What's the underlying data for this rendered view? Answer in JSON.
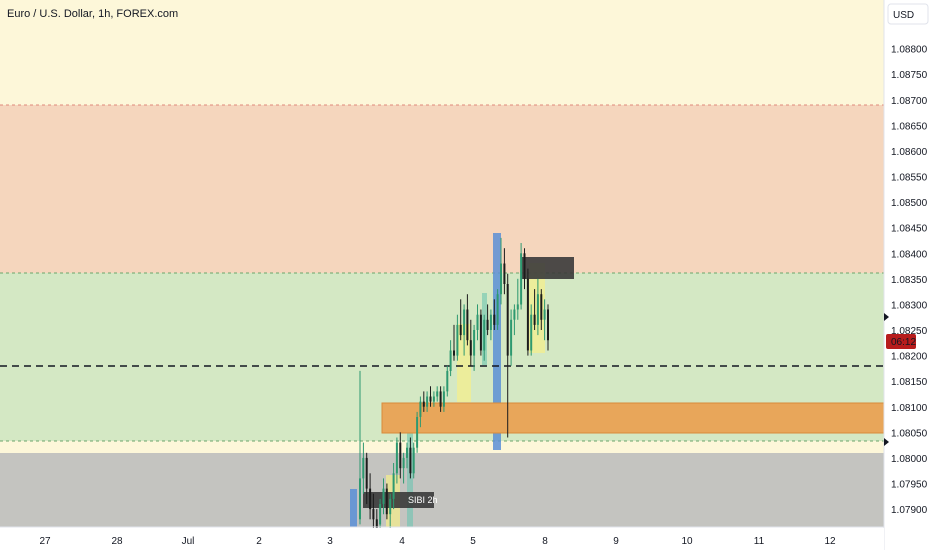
{
  "header": {
    "title": "Euro / U.S. Dollar, 1h, FOREX.com",
    "currency": "USD"
  },
  "price_axis": {
    "ticks": [
      "1.08800",
      "1.08750",
      "1.08700",
      "1.08650",
      "1.08600",
      "1.08550",
      "1.08500",
      "1.08450",
      "1.08400",
      "1.08350",
      "1.08300",
      "1.08250",
      "1.08200",
      "1.08150",
      "1.08100",
      "1.08050",
      "1.08000",
      "1.07950",
      "1.07900"
    ],
    "countdown": "06:12",
    "countdown_color": "#b71c1c"
  },
  "time_axis": {
    "ticks": [
      "27",
      "28",
      "Jul",
      "2",
      "3",
      "4",
      "5",
      "6",
      "8",
      "9",
      "10",
      "11",
      "12"
    ]
  },
  "annotations": {
    "box_label": "SIBI 2h"
  },
  "colors": {
    "background": "#fdf7d9",
    "supply_zone": "#f5d6bd",
    "demand_zone": "#d4e8c4",
    "lower_zone": "#c4c4c0",
    "orange_box": "#e8a65a",
    "bullish": "#2d9970",
    "bearish": "#1b1b1b",
    "level_line": "#131722"
  },
  "chart_data": {
    "type": "candlestick",
    "title": "Euro / U.S. Dollar, 1h, FOREX.com",
    "instrument": "EURUSD",
    "timeframe": "1h",
    "ylim": [
      1.07865,
      1.08895
    ],
    "x_ticks": [
      "27",
      "28",
      "Jul",
      "2",
      "3",
      "4",
      "5",
      "6",
      "8",
      "9",
      "10",
      "11",
      "12"
    ],
    "zones": [
      {
        "name": "upper",
        "from": 1.08343,
        "to": 1.08672
      },
      {
        "name": "middle",
        "from": 1.08017,
        "to": 1.08343
      },
      {
        "name": "lower",
        "from": 1.07865,
        "to": 1.07995
      }
    ],
    "levels": [
      1.0817
    ],
    "orange_zone": {
      "from": 1.08033,
      "to": 1.08095
    },
    "ohlc": [
      [
        1.0788,
        1.0817,
        1.0787,
        1.0796
      ],
      [
        1.0796,
        1.0803,
        1.0793,
        1.08
      ],
      [
        1.08,
        1.0801,
        1.0791,
        1.0794
      ],
      [
        1.0794,
        1.0797,
        1.0788,
        1.079
      ],
      [
        1.079,
        1.0793,
        1.0786,
        1.0788
      ],
      [
        1.0788,
        1.079,
        1.0785,
        1.0786
      ],
      [
        1.0787,
        1.0792,
        1.0786,
        1.0791
      ],
      [
        1.0791,
        1.0796,
        1.0789,
        1.0794
      ],
      [
        1.0794,
        1.0795,
        1.0788,
        1.0789
      ],
      [
        1.0789,
        1.0793,
        1.0786,
        1.0792
      ],
      [
        1.0792,
        1.0799,
        1.079,
        1.0797
      ],
      [
        1.0797,
        1.0804,
        1.0795,
        1.0803
      ],
      [
        1.0803,
        1.0805,
        1.0796,
        1.0798
      ],
      [
        1.0798,
        1.0801,
        1.0795,
        1.08
      ],
      [
        1.08,
        1.0803,
        1.0798,
        1.0802
      ],
      [
        1.0802,
        1.0804,
        1.0796,
        1.0797
      ],
      [
        1.0797,
        1.0803,
        1.0796,
        1.0802
      ],
      [
        1.0802,
        1.0809,
        1.0801,
        1.0808
      ],
      [
        1.0808,
        1.0812,
        1.0806,
        1.0811
      ],
      [
        1.0811,
        1.0813,
        1.0809,
        1.081
      ],
      [
        1.081,
        1.0813,
        1.0809,
        1.0812
      ],
      [
        1.0812,
        1.0814,
        1.081,
        1.0811
      ],
      [
        1.0811,
        1.0813,
        1.081,
        1.0812
      ],
      [
        1.0812,
        1.0814,
        1.0811,
        1.0813
      ],
      [
        1.0813,
        1.0814,
        1.0809,
        1.081
      ],
      [
        1.081,
        1.0814,
        1.0809,
        1.0813
      ],
      [
        1.0813,
        1.0818,
        1.0812,
        1.0817
      ],
      [
        1.0817,
        1.0823,
        1.0816,
        1.0821
      ],
      [
        1.0821,
        1.0826,
        1.0819,
        1.082
      ],
      [
        1.082,
        1.0828,
        1.0819,
        1.0826
      ],
      [
        1.0826,
        1.0831,
        1.0823,
        1.0824
      ],
      [
        1.0824,
        1.083,
        1.082,
        1.0829
      ],
      [
        1.0829,
        1.0832,
        1.0822,
        1.0823
      ],
      [
        1.0823,
        1.0827,
        1.0818,
        1.082
      ],
      [
        1.082,
        1.0826,
        1.0817,
        1.0825
      ],
      [
        1.0825,
        1.083,
        1.0823,
        1.0828
      ],
      [
        1.0828,
        1.0829,
        1.082,
        1.0821
      ],
      [
        1.0821,
        1.0828,
        1.0819,
        1.0827
      ],
      [
        1.0827,
        1.083,
        1.0824,
        1.0825
      ],
      [
        1.0825,
        1.0829,
        1.0823,
        1.0828
      ],
      [
        1.0828,
        1.0831,
        1.0825,
        1.0826
      ],
      [
        1.0826,
        1.0833,
        1.0825,
        1.0832
      ],
      [
        1.0832,
        1.0843,
        1.083,
        1.0838
      ],
      [
        1.0838,
        1.0841,
        1.0832,
        1.0834
      ],
      [
        1.0834,
        1.0836,
        1.0804,
        1.082
      ],
      [
        1.082,
        1.0829,
        1.0818,
        1.0827
      ],
      [
        1.0827,
        1.083,
        1.0824,
        1.0829
      ],
      [
        1.0829,
        1.0835,
        1.0827,
        1.083
      ],
      [
        1.083,
        1.0842,
        1.0829,
        1.084
      ],
      [
        1.084,
        1.0841,
        1.0833,
        1.0835
      ],
      [
        1.0835,
        1.0837,
        1.082,
        1.0821
      ],
      [
        1.0821,
        1.083,
        1.082,
        1.0828
      ],
      [
        1.0828,
        1.0833,
        1.0825,
        1.0826
      ],
      [
        1.0826,
        1.0835,
        1.0824,
        1.0832
      ],
      [
        1.0832,
        1.0833,
        1.0825,
        1.0827
      ],
      [
        1.0827,
        1.0831,
        1.0823,
        1.0829
      ],
      [
        1.0829,
        1.083,
        1.0821,
        1.0823
      ]
    ]
  }
}
